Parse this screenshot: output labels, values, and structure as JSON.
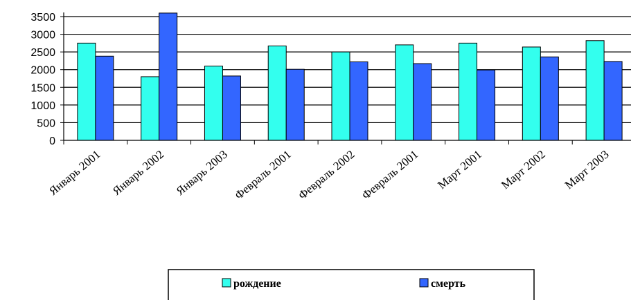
{
  "chart_data": {
    "type": "bar",
    "title": "",
    "xlabel": "",
    "ylabel": "",
    "ylim": [
      0,
      3500
    ],
    "yticks": [
      0,
      500,
      1000,
      1500,
      2000,
      2500,
      3000,
      3500
    ],
    "grid": "horizontal",
    "legend_position": "bottom",
    "categories": [
      "Январь 2001",
      "Январь 2002",
      "Январь 2003",
      "Февраль 2001",
      "Февраль 2002",
      "Февраль 2001",
      "Март 2001",
      "Март 2002",
      "Март 2003"
    ],
    "series": [
      {
        "name": "рождение",
        "color": "#33ffee",
        "values": [
          2750,
          1800,
          2100,
          2670,
          2500,
          2700,
          2750,
          2640,
          2820
        ]
      },
      {
        "name": "смерть",
        "color": "#3366ff",
        "values": [
          2380,
          3600,
          1820,
          2010,
          2220,
          2170,
          1990,
          2360,
          2230
        ]
      }
    ]
  }
}
